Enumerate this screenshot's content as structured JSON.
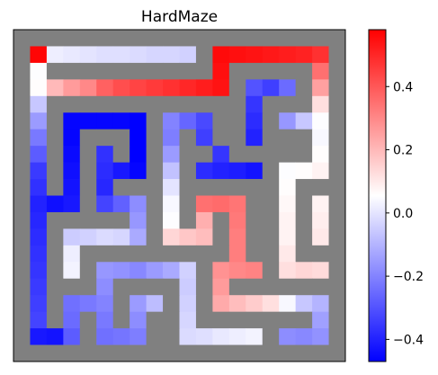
{
  "chart_data": {
    "type": "heatmap",
    "title": "HardMaze",
    "colormap": "bwr",
    "wall_color": "#808080",
    "vmin": -0.47,
    "vmax": 0.58,
    "colorbar_ticks": [
      0.4,
      0.2,
      0.0,
      -0.2,
      -0.4
    ],
    "colorbar_tick_labels": [
      "0.4",
      "0.2",
      "0.0",
      "−0.2",
      "−0.4"
    ],
    "grid": [
      [
        null,
        null,
        null,
        null,
        null,
        null,
        null,
        null,
        null,
        null,
        null,
        null,
        null,
        null,
        null,
        null,
        null,
        null,
        null,
        null
      ],
      [
        null,
        0.57,
        0.02,
        0.01,
        0.0,
        -0.01,
        -0.01,
        -0.02,
        -0.03,
        -0.03,
        -0.04,
        null,
        0.56,
        0.55,
        0.54,
        0.53,
        0.52,
        0.51,
        0.48,
        null
      ],
      [
        null,
        0.05,
        null,
        null,
        null,
        null,
        null,
        null,
        null,
        null,
        null,
        null,
        0.55,
        null,
        null,
        null,
        null,
        null,
        0.35,
        null
      ],
      [
        null,
        0.06,
        0.2,
        0.26,
        0.3,
        0.38,
        0.42,
        0.44,
        0.46,
        0.48,
        0.5,
        0.52,
        0.54,
        null,
        -0.3,
        -0.34,
        -0.25,
        null,
        0.25,
        null
      ],
      [
        null,
        -0.06,
        null,
        null,
        null,
        null,
        null,
        null,
        null,
        null,
        null,
        null,
        null,
        null,
        -0.36,
        null,
        null,
        null,
        0.12,
        null
      ],
      [
        null,
        -0.15,
        null,
        -0.46,
        -0.46,
        -0.46,
        -0.46,
        -0.47,
        null,
        -0.2,
        -0.26,
        -0.32,
        null,
        null,
        -0.38,
        null,
        -0.16,
        -0.06,
        0.05,
        null
      ],
      [
        null,
        -0.22,
        null,
        -0.46,
        null,
        null,
        null,
        -0.47,
        null,
        -0.21,
        null,
        -0.34,
        null,
        null,
        -0.4,
        null,
        null,
        null,
        0.04,
        null
      ],
      [
        null,
        -0.28,
        null,
        -0.45,
        null,
        -0.37,
        null,
        -0.47,
        null,
        -0.15,
        null,
        null,
        -0.36,
        null,
        null,
        null,
        null,
        null,
        0.06,
        null
      ],
      [
        null,
        -0.35,
        null,
        -0.44,
        null,
        -0.38,
        -0.42,
        -0.46,
        null,
        -0.07,
        null,
        -0.38,
        -0.4,
        -0.41,
        -0.43,
        null,
        0.05,
        0.06,
        0.08,
        null
      ],
      [
        null,
        -0.37,
        null,
        -0.43,
        null,
        -0.39,
        null,
        null,
        null,
        0.0,
        null,
        null,
        null,
        null,
        null,
        null,
        0.06,
        null,
        null,
        null
      ],
      [
        null,
        -0.4,
        -0.44,
        -0.42,
        null,
        -0.33,
        -0.27,
        -0.18,
        null,
        0.04,
        null,
        0.35,
        0.36,
        0.34,
        null,
        null,
        0.07,
        null,
        0.08,
        null
      ],
      [
        null,
        -0.39,
        null,
        null,
        null,
        null,
        null,
        -0.16,
        null,
        0.05,
        null,
        0.22,
        null,
        0.33,
        null,
        null,
        0.08,
        null,
        0.09,
        null
      ],
      [
        null,
        -0.38,
        null,
        -0.05,
        -0.04,
        -0.02,
        -0.03,
        -0.12,
        null,
        0.14,
        0.17,
        0.19,
        null,
        0.32,
        null,
        null,
        0.08,
        null,
        0.1,
        null
      ],
      [
        null,
        -0.37,
        null,
        0.02,
        null,
        null,
        null,
        null,
        null,
        null,
        null,
        null,
        null,
        0.32,
        null,
        null,
        0.1,
        null,
        null,
        null
      ],
      [
        null,
        -0.36,
        null,
        0.03,
        null,
        -0.16,
        -0.17,
        -0.19,
        -0.15,
        -0.12,
        -0.04,
        null,
        0.28,
        0.3,
        0.31,
        null,
        0.12,
        0.14,
        0.13,
        null
      ],
      [
        null,
        -0.35,
        null,
        null,
        null,
        -0.18,
        null,
        null,
        null,
        null,
        -0.05,
        null,
        0.26,
        null,
        null,
        null,
        null,
        null,
        null,
        null
      ],
      [
        null,
        -0.34,
        null,
        -0.24,
        -0.22,
        -0.2,
        null,
        -0.15,
        -0.08,
        null,
        -0.04,
        null,
        0.23,
        0.19,
        0.16,
        0.12,
        0.04,
        -0.06,
        -0.1,
        null
      ],
      [
        null,
        -0.33,
        null,
        -0.25,
        null,
        -0.22,
        null,
        -0.18,
        null,
        null,
        -0.03,
        null,
        null,
        null,
        null,
        null,
        null,
        null,
        -0.14,
        null
      ],
      [
        null,
        -0.42,
        -0.43,
        -0.28,
        null,
        -0.24,
        -0.23,
        -0.21,
        null,
        null,
        -0.02,
        -0.01,
        0.01,
        0.02,
        0.03,
        null,
        -0.18,
        -0.19,
        -0.17,
        null
      ],
      [
        null,
        null,
        null,
        null,
        null,
        null,
        null,
        null,
        null,
        null,
        null,
        null,
        null,
        null,
        null,
        null,
        null,
        null,
        null,
        null
      ]
    ]
  }
}
